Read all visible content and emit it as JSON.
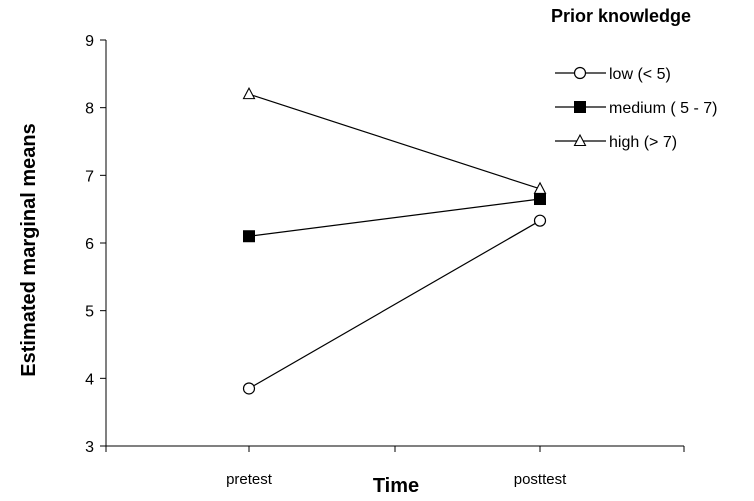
{
  "chart_data": {
    "type": "line",
    "categories": [
      "pretest",
      "posttest"
    ],
    "xlabel": "Time",
    "ylabel": "Estimated marginal means",
    "ylim": [
      3,
      9
    ],
    "yticks": [
      3,
      4,
      5,
      6,
      7,
      8,
      9
    ],
    "grid": false,
    "legend": {
      "title": "Prior knowledge",
      "placement": "top-right"
    },
    "series": [
      {
        "name": "low (< 5)",
        "marker": "circle-open",
        "color": "#000000",
        "values": [
          3.85,
          6.33
        ]
      },
      {
        "name": "medium ( 5 - 7)",
        "marker": "square-filled",
        "color": "#000000",
        "values": [
          6.1,
          6.65
        ]
      },
      {
        "name": "high (> 7)",
        "marker": "triangle-open",
        "color": "#000000",
        "values": [
          8.2,
          6.8
        ]
      }
    ]
  }
}
